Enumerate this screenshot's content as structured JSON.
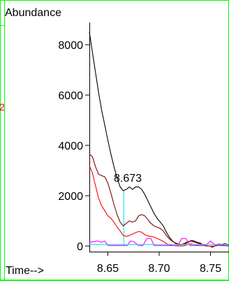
{
  "chart_data": {
    "type": "line",
    "ylabel": "Abundance",
    "xlabel": "Time-->",
    "left_marker": "2",
    "peak_label": "8.673",
    "xlim": [
      8.632,
      8.768
    ],
    "ylim": [
      -300,
      9100
    ],
    "x_ticks": [
      8.65,
      8.7,
      8.75
    ],
    "x_tick_labels": [
      "8.65",
      "8.70",
      "8.75"
    ],
    "y_ticks": [
      0,
      2000,
      4000,
      6000,
      8000
    ],
    "y_tick_labels": [
      "0",
      "2000",
      "4000",
      "6000",
      "8000"
    ],
    "marker_line": {
      "x": 8.6655,
      "y_top": 2200
    },
    "series": [
      {
        "color": "#000000",
        "x": [
          8.632,
          8.635,
          8.638,
          8.641,
          8.644,
          8.647,
          8.65,
          8.653,
          8.656,
          8.659,
          8.662,
          8.665,
          8.668,
          8.671,
          8.674,
          8.677,
          8.68,
          8.683,
          8.686,
          8.689,
          8.692,
          8.695,
          8.698,
          8.701,
          8.704,
          8.707,
          8.71,
          8.713,
          8.716,
          8.719,
          8.722,
          8.725,
          8.728,
          8.731,
          8.734,
          8.737,
          8.74,
          8.743,
          8.746,
          8.749,
          8.752,
          8.755,
          8.758,
          8.761,
          8.764,
          8.768
        ],
        "values": [
          8500,
          7700,
          6900,
          6100,
          5400,
          4800,
          4200,
          3650,
          3150,
          2700,
          2350,
          2200,
          2250,
          2350,
          2250,
          2350,
          2350,
          2250,
          2050,
          1800,
          1550,
          1300,
          1100,
          950,
          800,
          550,
          350,
          200,
          100,
          50,
          50,
          80,
          150,
          220,
          200,
          150,
          120,
          50,
          0,
          0,
          -20,
          20,
          80,
          50,
          20,
          20
        ]
      },
      {
        "color": "#800000",
        "x": [
          8.632,
          8.635,
          8.638,
          8.641,
          8.644,
          8.647,
          8.65,
          8.653,
          8.656,
          8.659,
          8.662,
          8.665,
          8.668,
          8.671,
          8.674,
          8.677,
          8.68,
          8.683,
          8.686,
          8.689,
          8.692,
          8.695,
          8.698,
          8.701,
          8.704,
          8.707,
          8.71,
          8.713,
          8.716,
          8.719,
          8.722,
          8.725,
          8.728,
          8.731,
          8.734,
          8.737,
          8.74,
          8.743,
          8.746,
          8.749,
          8.752,
          8.755,
          8.758,
          8.761,
          8.764,
          8.768
        ],
        "values": [
          3650,
          3550,
          3150,
          2850,
          2800,
          2750,
          2500,
          2100,
          1650,
          1250,
          950,
          800,
          900,
          1000,
          950,
          1000,
          1200,
          1250,
          1200,
          1050,
          900,
          800,
          750,
          700,
          600,
          420,
          280,
          180,
          120,
          80,
          60,
          120,
          180,
          200,
          160,
          120,
          80,
          60,
          20,
          0,
          -50,
          40,
          80,
          60,
          100,
          50
        ]
      },
      {
        "color": "#ff0000",
        "x": [
          8.632,
          8.635,
          8.638,
          8.641,
          8.644,
          8.647,
          8.65,
          8.653,
          8.656,
          8.659,
          8.662,
          8.665,
          8.668,
          8.671,
          8.674,
          8.677,
          8.68,
          8.683,
          8.686,
          8.689,
          8.692,
          8.695,
          8.698,
          8.701,
          8.704,
          8.707,
          8.71,
          8.713,
          8.716,
          8.719,
          8.722,
          8.725,
          8.728,
          8.731,
          8.734,
          8.737,
          8.74,
          8.743,
          8.746,
          8.749,
          8.752,
          8.755,
          8.758,
          8.761,
          8.764,
          8.768
        ],
        "values": [
          3200,
          2900,
          2400,
          1900,
          1600,
          1400,
          1200,
          1100,
          950,
          750,
          600,
          420,
          380,
          420,
          480,
          530,
          580,
          550,
          450,
          400,
          380,
          360,
          300,
          250,
          180,
          100,
          50,
          20,
          10,
          0,
          0,
          20,
          60,
          90,
          60,
          30,
          20,
          20,
          0,
          0,
          0,
          0,
          40,
          20,
          10,
          0
        ]
      },
      {
        "color": "#ff00ff",
        "x": [
          8.632,
          8.64,
          8.644,
          8.647,
          8.65,
          8.655,
          8.66,
          8.665,
          8.669,
          8.672,
          8.675,
          8.68,
          8.684,
          8.688,
          8.692,
          8.695,
          8.7,
          8.705,
          8.71,
          8.714,
          8.718,
          8.722,
          8.726,
          8.73,
          8.735,
          8.74,
          8.745,
          8.75,
          8.755,
          8.76,
          8.768
        ],
        "values": [
          150,
          200,
          150,
          200,
          20,
          20,
          20,
          20,
          20,
          200,
          180,
          20,
          20,
          300,
          300,
          20,
          20,
          20,
          20,
          20,
          20,
          300,
          300,
          20,
          20,
          20,
          20,
          200,
          20,
          20,
          20
        ]
      },
      {
        "color": "#00e5ee",
        "x": [
          8.632,
          8.64,
          8.648,
          8.65,
          8.655,
          8.66,
          8.665,
          8.67,
          8.675,
          8.68,
          8.685,
          8.69,
          8.695,
          8.7,
          8.705,
          8.71,
          8.715,
          8.72,
          8.725,
          8.73,
          8.735,
          8.74,
          8.745,
          8.75,
          8.755,
          8.76,
          8.768
        ],
        "values": [
          60,
          60,
          60,
          60,
          60,
          60,
          60,
          60,
          60,
          60,
          60,
          60,
          60,
          60,
          60,
          60,
          60,
          60,
          60,
          60,
          60,
          60,
          60,
          60,
          60,
          60,
          60
        ]
      }
    ]
  }
}
